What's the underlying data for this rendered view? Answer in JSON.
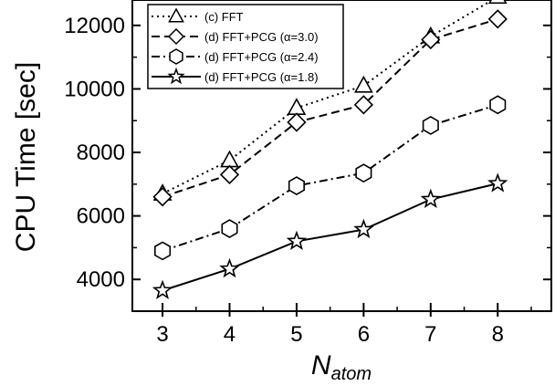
{
  "chart_data": {
    "type": "line",
    "title": "",
    "xlabel": "N",
    "xlabel_subscript": "atom",
    "ylabel": "CPU Time [sec]",
    "x": [
      3,
      4,
      5,
      6,
      7,
      8
    ],
    "xlim": [
      2.55,
      8.8
    ],
    "ylim": [
      3000,
      12800
    ],
    "xticks": [
      "3",
      "4",
      "5",
      "6",
      "7",
      "8"
    ],
    "yticks": [
      4000,
      6000,
      8000,
      10000,
      12000
    ],
    "ytick_labels": [
      "4000",
      "6000",
      "8000",
      "10000",
      "12000"
    ],
    "grid": false,
    "legend_position": "top-left",
    "series": [
      {
        "name": "(c) FFT",
        "marker": "triangle",
        "dash": "dotted",
        "values": [
          6700,
          7750,
          9400,
          10100,
          11650,
          12900
        ]
      },
      {
        "name": "(d) FFT+PCG (α=3.0)",
        "marker": "diamond",
        "dash": "dashed",
        "values": [
          6600,
          7300,
          8950,
          9500,
          11550,
          12200
        ]
      },
      {
        "name": "(d) FFT+PCG (α=2.4)",
        "marker": "hexagon",
        "dash": "dashdot",
        "values": [
          4900,
          5600,
          6950,
          7350,
          8850,
          9500
        ]
      },
      {
        "name": "(d) FFT+PCG (α=1.8)",
        "marker": "star",
        "dash": "solid",
        "values": [
          3650,
          4330,
          5200,
          5570,
          6520,
          7020
        ]
      }
    ]
  }
}
